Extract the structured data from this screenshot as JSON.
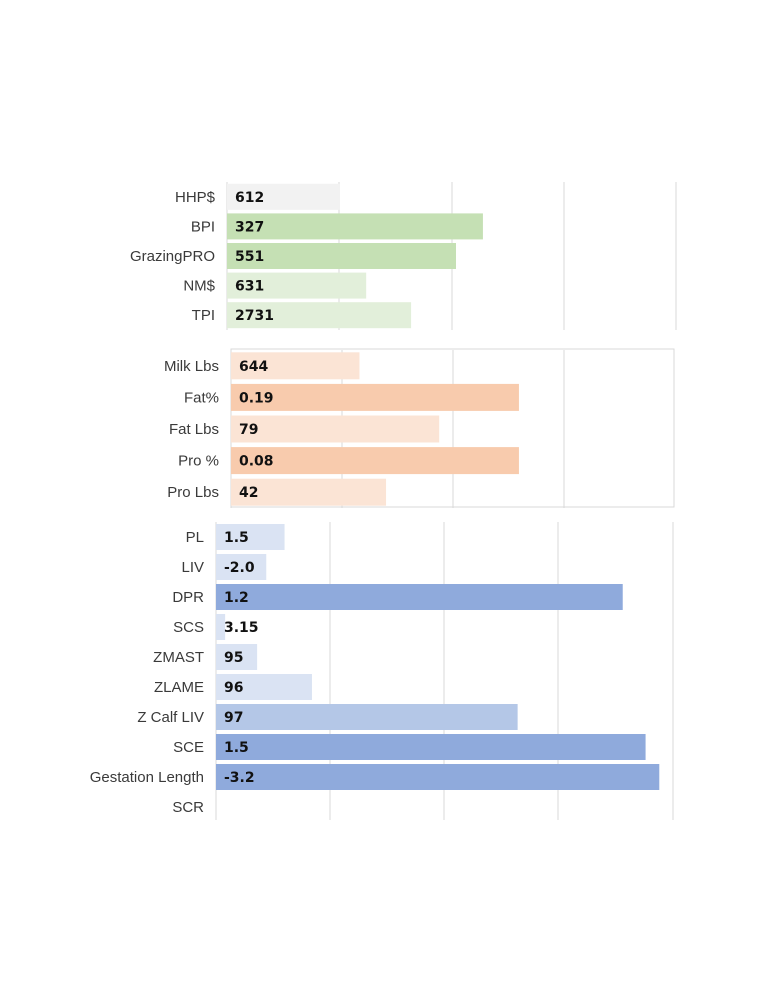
{
  "chart_data": [
    {
      "type": "bar",
      "orientation": "horizontal",
      "categories": [
        "HHP$",
        "BPI",
        "GrazingPRO",
        "NM$",
        "TPI"
      ],
      "data_labels": [
        "612",
        "327",
        "551",
        "631",
        "2731"
      ],
      "relative_bar_length": [
        0.25,
        0.57,
        0.51,
        0.31,
        0.41
      ],
      "colors": [
        "#f2f2f2",
        "#c5e0b4",
        "#c5e0b4",
        "#e2efda",
        "#e2efda"
      ],
      "grid": true,
      "border": false
    },
    {
      "type": "bar",
      "orientation": "horizontal",
      "categories": [
        "Milk Lbs",
        "Fat%",
        "Fat Lbs",
        "Pro %",
        "Pro Lbs"
      ],
      "data_labels": [
        "644",
        "0.19",
        "79",
        "0.08",
        "42"
      ],
      "relative_bar_length": [
        0.29,
        0.65,
        0.47,
        0.65,
        0.35
      ],
      "colors": [
        "#fbe4d5",
        "#f8cbad",
        "#fbe4d5",
        "#f8cbad",
        "#fbe4d5"
      ],
      "grid": true,
      "border": true
    },
    {
      "type": "bar",
      "orientation": "horizontal",
      "categories": [
        "PL",
        "LIV",
        "DPR",
        "SCS",
        "ZMAST",
        "ZLAME",
        "Z Calf LIV",
        "SCE",
        "Gestation Length",
        "SCR"
      ],
      "data_labels": [
        "1.5",
        "-2.0",
        "1.2",
        "3.15",
        "95",
        "96",
        "97",
        "1.5",
        "-3.2",
        ""
      ],
      "relative_bar_length": [
        0.15,
        0.11,
        0.89,
        0.02,
        0.09,
        0.21,
        0.66,
        0.94,
        0.97,
        0
      ],
      "colors": [
        "#dae3f3",
        "#dae3f3",
        "#8faadc",
        "#dae3f3",
        "#dae3f3",
        "#dae3f3",
        "#b4c7e7",
        "#8faadc",
        "#8faadc",
        "#dae3f3"
      ],
      "grid": true,
      "border": false
    }
  ]
}
